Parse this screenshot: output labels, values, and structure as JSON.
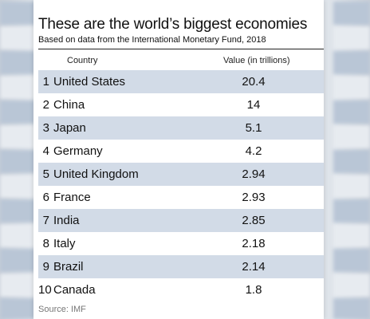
{
  "chart_data": {
    "type": "table",
    "title": "These are the world’s biggest economies",
    "subtitle": "Based on data from the International Monetary Fund, 2018",
    "columns": [
      "Country",
      "Value (in trillions)"
    ],
    "rows": [
      {
        "rank": "1",
        "country": "United States",
        "value": "20.4"
      },
      {
        "rank": "2",
        "country": "China",
        "value": "14"
      },
      {
        "rank": "3",
        "country": "Japan",
        "value": "5.1"
      },
      {
        "rank": "4",
        "country": "Germany",
        "value": "4.2"
      },
      {
        "rank": "5",
        "country": "United Kingdom",
        "value": "2.94"
      },
      {
        "rank": "6",
        "country": "France",
        "value": "2.93"
      },
      {
        "rank": "7",
        "country": "India",
        "value": "2.85"
      },
      {
        "rank": "8",
        "country": "Italy",
        "value": "2.18"
      },
      {
        "rank": "9",
        "country": "Brazil",
        "value": "2.14"
      },
      {
        "rank": "10",
        "country": "Canada",
        "value": "1.8"
      }
    ],
    "source": "Source: IMF"
  },
  "colors": {
    "row_shade": "#d2dbe7",
    "row_plain": "#ffffff",
    "text": "#111111",
    "source_text": "#777777"
  }
}
